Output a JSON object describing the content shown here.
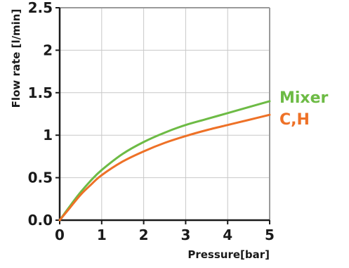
{
  "chart_data": {
    "type": "line",
    "xlabel": "Pressure[bar]",
    "ylabel": "Flow rate [l/min]",
    "xlim": [
      0,
      5
    ],
    "ylim": [
      0,
      2.5
    ],
    "x_ticks": [
      0,
      1,
      2,
      3,
      4,
      5
    ],
    "x_tick_labels": [
      "0",
      "1",
      "2",
      "3",
      "4",
      "5"
    ],
    "y_ticks": [
      0,
      0.5,
      1,
      1.5,
      2,
      2.5
    ],
    "y_tick_labels": [
      "0.0",
      "0.5",
      "1",
      "1.5",
      "2",
      "2.5"
    ],
    "grid": true,
    "legend_placement": "right, at line ends",
    "series": [
      {
        "name": "Mixer",
        "color": "#6dbb45",
        "x": [
          0,
          0.25,
          0.5,
          0.75,
          1,
          1.5,
          2,
          2.5,
          3,
          3.5,
          4,
          4.5,
          5
        ],
        "y": [
          0,
          0.17,
          0.33,
          0.47,
          0.59,
          0.78,
          0.92,
          1.03,
          1.12,
          1.19,
          1.26,
          1.33,
          1.4
        ]
      },
      {
        "name": "C,H",
        "color": "#ee7127",
        "x": [
          0,
          0.25,
          0.5,
          0.75,
          1,
          1.5,
          2,
          2.5,
          3,
          3.5,
          4,
          4.5,
          5
        ],
        "y": [
          0,
          0.15,
          0.3,
          0.42,
          0.53,
          0.69,
          0.81,
          0.91,
          0.99,
          1.06,
          1.12,
          1.18,
          1.24
        ]
      }
    ]
  }
}
